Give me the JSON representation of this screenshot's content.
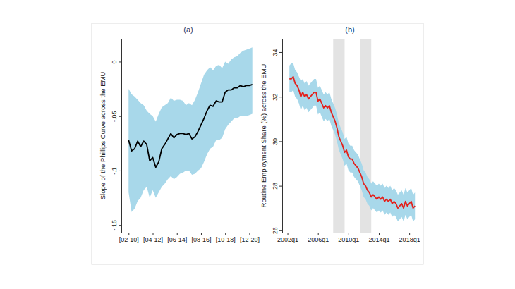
{
  "chart_data": [
    {
      "type": "line",
      "title": "(a)",
      "y_label": "Slope of the Phillips Curve across the EMU",
      "x": [
        2002,
        2002.25,
        2002.5,
        2002.75,
        2003,
        2003.25,
        2003.5,
        2003.75,
        2004,
        2004.25,
        2004.5,
        2004.75,
        2005,
        2005.25,
        2005.5,
        2005.75,
        2006,
        2006.25,
        2006.5,
        2006.75,
        2007,
        2007.25,
        2007.5,
        2007.75,
        2008,
        2008.25,
        2008.5,
        2008.75,
        2009,
        2009.25,
        2009.5,
        2009.75,
        2010,
        2010.25,
        2010.5,
        2010.75,
        2011,
        2011.25,
        2011.5,
        2011.75,
        2012,
        2012.25
      ],
      "series": [
        {
          "type": "area",
          "color": "#a8d8ea",
          "lower": [
            -0.12,
            -0.138,
            -0.135,
            -0.128,
            -0.125,
            -0.118,
            -0.115,
            -0.125,
            -0.118,
            -0.125,
            -0.12,
            -0.115,
            -0.112,
            -0.108,
            -0.105,
            -0.108,
            -0.106,
            -0.103,
            -0.102,
            -0.1,
            -0.1,
            -0.104,
            -0.103,
            -0.1,
            -0.098,
            -0.092,
            -0.085,
            -0.08,
            -0.078,
            -0.072,
            -0.072,
            -0.07,
            -0.062,
            -0.058,
            -0.055,
            -0.052,
            -0.052,
            -0.05,
            -0.05,
            -0.05,
            -0.049,
            -0.048
          ],
          "upper": [
            -0.025,
            -0.03,
            -0.032,
            -0.035,
            -0.038,
            -0.04,
            -0.045,
            -0.048,
            -0.05,
            -0.055,
            -0.048,
            -0.042,
            -0.04,
            -0.038,
            -0.033,
            -0.036,
            -0.035,
            -0.035,
            -0.036,
            -0.04,
            -0.038,
            -0.04,
            -0.035,
            -0.028,
            -0.02,
            -0.012,
            -0.008,
            -0.005,
            -0.008,
            -0.004,
            -0.003,
            -0.006,
            0,
            -0.002,
            0.002,
            0.004,
            0.005,
            0.008,
            0.01,
            0.011,
            0.012,
            0.013
          ]
        },
        {
          "type": "line",
          "color": "#000000",
          "values": [
            -0.072,
            -0.082,
            -0.08,
            -0.073,
            -0.078,
            -0.073,
            -0.076,
            -0.091,
            -0.088,
            -0.097,
            -0.092,
            -0.08,
            -0.076,
            -0.071,
            -0.066,
            -0.07,
            -0.067,
            -0.066,
            -0.066,
            -0.067,
            -0.066,
            -0.071,
            -0.069,
            -0.064,
            -0.058,
            -0.052,
            -0.045,
            -0.04,
            -0.041,
            -0.036,
            -0.037,
            -0.037,
            -0.028,
            -0.026,
            -0.026,
            -0.024,
            -0.024,
            -0.022,
            -0.023,
            -0.022,
            -0.022,
            -0.021
          ]
        }
      ],
      "xlim": [
        2001.4,
        2012.5
      ],
      "xticks": [
        {
          "value": 2002,
          "label": "[02-10]"
        },
        {
          "value": 2004,
          "label": "[04-12]"
        },
        {
          "value": 2006,
          "label": "[06-14]"
        },
        {
          "value": 2008,
          "label": "[08-16]"
        },
        {
          "value": 2010,
          "label": "[10-18]"
        },
        {
          "value": 2012,
          "label": "[12-20]"
        }
      ],
      "ylim": [
        -0.157,
        0.021
      ],
      "yticks": [
        {
          "value": -0.15,
          "label": "-.15"
        },
        {
          "value": -0.1,
          "label": "-.1"
        },
        {
          "value": -0.05,
          "label": "-.05"
        },
        0
      ],
      "grid": false
    },
    {
      "type": "line",
      "title": "(b)",
      "y_label": "Routine Employment Share (%) across the EMU",
      "x": [
        2002.25,
        2002.5,
        2002.75,
        2003,
        2003.25,
        2003.5,
        2003.75,
        2004,
        2004.25,
        2004.5,
        2004.75,
        2005,
        2005.25,
        2005.5,
        2005.75,
        2006,
        2006.25,
        2006.5,
        2006.75,
        2007,
        2007.25,
        2007.5,
        2007.75,
        2008,
        2008.25,
        2008.5,
        2008.75,
        2009,
        2009.25,
        2009.5,
        2009.75,
        2010,
        2010.25,
        2010.5,
        2010.75,
        2011,
        2011.25,
        2011.5,
        2011.75,
        2012,
        2012.25,
        2012.5,
        2012.75,
        2013,
        2013.25,
        2013.5,
        2013.75,
        2014,
        2014.25,
        2014.5,
        2014.75,
        2015,
        2015.25,
        2015.5,
        2015.75,
        2016,
        2016.25,
        2016.5,
        2016.75,
        2017,
        2017.25,
        2017.5,
        2017.75,
        2018,
        2018.25,
        2018.5,
        2018.75
      ],
      "shaded_periods": [
        [
          2008,
          2009.5
        ],
        [
          2011.5,
          2013
        ]
      ],
      "series": [
        {
          "type": "area",
          "color": "#a8d8ea",
          "lower": [
            32.2,
            32.2,
            32.3,
            32.0,
            31.9,
            31.7,
            31.4,
            31.6,
            31.4,
            31.5,
            31.3,
            31.4,
            31.5,
            31.6,
            31.6,
            31.2,
            31.3,
            31.1,
            30.9,
            31.0,
            30.9,
            31.0,
            30.7,
            30.5,
            30.3,
            30.0,
            29.6,
            29.4,
            29.2,
            28.9,
            29.0,
            28.7,
            28.6,
            28.6,
            28.4,
            28.3,
            28.2,
            28.0,
            27.8,
            27.5,
            27.4,
            27.2,
            27.1,
            26.9,
            27.0,
            26.9,
            26.8,
            26.9,
            26.8,
            26.9,
            26.7,
            26.8,
            26.7,
            26.8,
            26.6,
            26.7,
            26.6,
            26.4,
            26.5,
            26.6,
            26.4,
            26.7,
            26.5,
            26.6,
            26.7,
            26.4,
            26.5
          ],
          "upper": [
            33.4,
            33.5,
            33.5,
            33.2,
            33.1,
            32.9,
            32.7,
            32.8,
            32.6,
            32.7,
            32.5,
            32.6,
            32.7,
            32.8,
            32.8,
            32.4,
            32.5,
            32.3,
            32.1,
            32.2,
            32.1,
            32.2,
            31.9,
            31.7,
            31.5,
            31.2,
            30.8,
            30.6,
            30.4,
            30.1,
            30.2,
            29.9,
            29.8,
            29.8,
            29.6,
            29.5,
            29.4,
            29.2,
            29.0,
            28.7,
            28.6,
            28.4,
            28.3,
            28.1,
            28.2,
            28.1,
            28.0,
            28.1,
            28.0,
            28.1,
            27.9,
            28.0,
            27.9,
            28.0,
            27.8,
            27.9,
            27.8,
            27.6,
            27.7,
            27.8,
            27.6,
            27.9,
            27.7,
            27.8,
            27.9,
            27.6,
            27.7
          ]
        },
        {
          "type": "line",
          "color": "#e3211c",
          "values": [
            32.8,
            32.8,
            32.9,
            32.6,
            32.5,
            32.3,
            32.0,
            32.2,
            32.0,
            32.1,
            31.9,
            32.0,
            32.1,
            32.2,
            32.2,
            31.8,
            31.9,
            31.7,
            31.5,
            31.6,
            31.5,
            31.6,
            31.3,
            31.1,
            30.9,
            30.6,
            30.2,
            30.0,
            29.8,
            29.5,
            29.6,
            29.3,
            29.2,
            29.2,
            29.0,
            28.9,
            28.8,
            28.6,
            28.4,
            28.1,
            28.0,
            27.8,
            27.7,
            27.5,
            27.6,
            27.5,
            27.4,
            27.5,
            27.4,
            27.5,
            27.3,
            27.4,
            27.3,
            27.4,
            27.2,
            27.3,
            27.2,
            27.0,
            27.1,
            27.2,
            27.0,
            27.3,
            27.1,
            27.2,
            27.3,
            27.0,
            27.1
          ]
        }
      ],
      "xlim": [
        2001.3,
        2019.1
      ],
      "xticks": [
        {
          "value": 2002,
          "label": "2002q1"
        },
        {
          "value": 2006,
          "label": "2006q1"
        },
        {
          "value": 2010,
          "label": "2010q1"
        },
        {
          "value": 2014,
          "label": "2014q1"
        },
        {
          "value": 2018,
          "label": "2018q1"
        }
      ],
      "ylim": [
        25.9,
        34.6
      ],
      "yticks": [
        26,
        28,
        30,
        32,
        34
      ],
      "grid": false
    }
  ]
}
